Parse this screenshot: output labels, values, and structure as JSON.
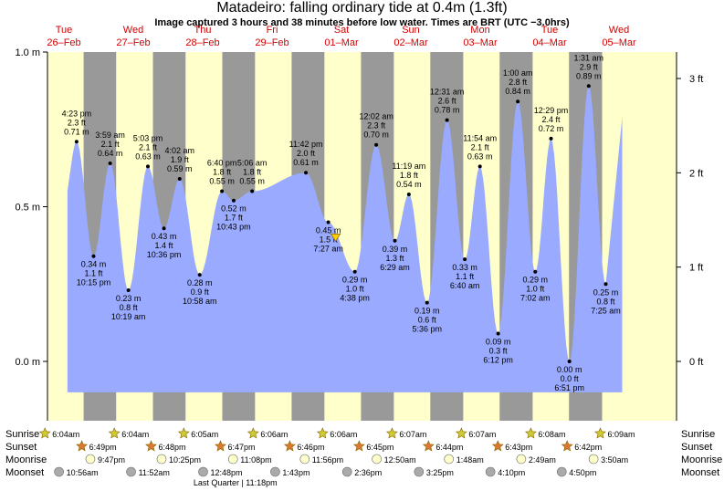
{
  "title": "Matadeiro: falling  ordinary tide at 0.4m (1.3ft)",
  "subtitle": "Image captured 3 hours and 38 minutes before low water. Times are BRT (UTC −3.0hrs)",
  "colors": {
    "night": "#999999",
    "day": "#ffffcc",
    "tide_fill": "#99aaff",
    "date_text": "#d40000",
    "sunrise_icon": "#cccc33",
    "sunset_icon": "#dd7733",
    "moonrise_icon": "#ffffcc",
    "moonset_icon": "#aaaaaa"
  },
  "row_labels": {
    "sunrise": "Sunrise",
    "sunset": "Sunset",
    "moonrise": "Moonrise",
    "moonset": "Moonset"
  },
  "chart_data": {
    "type": "area",
    "title": "Matadeiro: falling  ordinary tide at 0.4m (1.3ft)",
    "left_axis": {
      "unit": "m",
      "ticks": [
        "0.0 m",
        "0.5 m",
        "1.0 m"
      ],
      "values": [
        0,
        0.5,
        1.0
      ]
    },
    "right_axis": {
      "unit": "ft",
      "ticks": [
        "0 ft",
        "1 ft",
        "2 ft",
        "3 ft"
      ],
      "values": [
        0,
        1,
        2,
        3
      ]
    },
    "ylim_m": [
      -0.1,
      1.0
    ],
    "days": [
      {
        "name": "Tue",
        "date": "26–Feb"
      },
      {
        "name": "Wed",
        "date": "27–Feb"
      },
      {
        "name": "Thu",
        "date": "28–Feb"
      },
      {
        "name": "Fri",
        "date": "29–Feb"
      },
      {
        "name": "Sat",
        "date": "01–Mar"
      },
      {
        "name": "Sun",
        "date": "02–Mar"
      },
      {
        "name": "Mon",
        "date": "03–Mar"
      },
      {
        "name": "Tue",
        "date": "04–Mar"
      },
      {
        "name": "Wed",
        "date": "05–Mar"
      }
    ],
    "extrema": [
      {
        "type": "high",
        "time": "4:23 pm",
        "ft": "2.3 ft",
        "m": 0.71,
        "m_label": "0.71 m"
      },
      {
        "type": "low",
        "time": "10:15 pm",
        "ft": "1.1 ft",
        "m": 0.34,
        "m_label": "0.34 m"
      },
      {
        "type": "high",
        "time": "3:59 am",
        "ft": "2.1 ft",
        "m": 0.64,
        "m_label": "0.64 m"
      },
      {
        "type": "low",
        "time": "10:19 am",
        "ft": "0.8 ft",
        "m": 0.23,
        "m_label": "0.23 m"
      },
      {
        "type": "high",
        "time": "5:03 pm",
        "ft": "2.1 ft",
        "m": 0.63,
        "m_label": "0.63 m"
      },
      {
        "type": "low",
        "time": "10:36 pm",
        "ft": "1.4 ft",
        "m": 0.43,
        "m_label": "0.43 m"
      },
      {
        "type": "high",
        "time": "4:02 am",
        "ft": "1.9 ft",
        "m": 0.59,
        "m_label": "0.59 m"
      },
      {
        "type": "low",
        "time": "10:58 am",
        "ft": "0.9 ft",
        "m": 0.28,
        "m_label": "0.28 m"
      },
      {
        "type": "high",
        "time": "6:40 pm",
        "ft": "1.8 ft",
        "m": 0.55,
        "m_label": "0.55 m"
      },
      {
        "type": "low",
        "time": "10:43 pm",
        "ft": "1.7 ft",
        "m": 0.52,
        "m_label": "0.52 m"
      },
      {
        "type": "high",
        "time": "5:06 am",
        "ft": "1.8 ft",
        "m": 0.55,
        "m_label": "0.55 m"
      },
      {
        "type": "high",
        "time": "11:42 pm",
        "ft": "2.0 ft",
        "m": 0.61,
        "m_label": "0.61 m"
      },
      {
        "type": "low",
        "time": "7:27 am",
        "ft": "1.5 ft",
        "m": 0.45,
        "m_label": "0.45 m"
      },
      {
        "type": "low",
        "time": "4:38 pm",
        "ft": "1.0 ft",
        "m": 0.29,
        "m_label": "0.29 m"
      },
      {
        "type": "high",
        "time": "12:02 am",
        "ft": "2.3 ft",
        "m": 0.7,
        "m_label": "0.70 m"
      },
      {
        "type": "low",
        "time": "6:29 am",
        "ft": "1.3 ft",
        "m": 0.39,
        "m_label": "0.39 m"
      },
      {
        "type": "high",
        "time": "11:19 am",
        "ft": "1.8 ft",
        "m": 0.54,
        "m_label": "0.54 m"
      },
      {
        "type": "low",
        "time": "5:36 pm",
        "ft": "0.6 ft",
        "m": 0.19,
        "m_label": "0.19 m"
      },
      {
        "type": "high",
        "time": "12:31 am",
        "ft": "2.6 ft",
        "m": 0.78,
        "m_label": "0.78 m"
      },
      {
        "type": "low",
        "time": "6:40 am",
        "ft": "1.1 ft",
        "m": 0.33,
        "m_label": "0.33 m"
      },
      {
        "type": "high",
        "time": "11:54 am",
        "ft": "2.1 ft",
        "m": 0.63,
        "m_label": "0.63 m"
      },
      {
        "type": "low",
        "time": "6:12 pm",
        "ft": "0.3 ft",
        "m": 0.09,
        "m_label": "0.09 m"
      },
      {
        "type": "high",
        "time": "1:00 am",
        "ft": "2.8 ft",
        "m": 0.84,
        "m_label": "0.84 m"
      },
      {
        "type": "low",
        "time": "7:02 am",
        "ft": "1.0 ft",
        "m": 0.29,
        "m_label": "0.29 m"
      },
      {
        "type": "high",
        "time": "12:29 pm",
        "ft": "2.4 ft",
        "m": 0.72,
        "m_label": "0.72 m"
      },
      {
        "type": "low",
        "time": "6:51 pm",
        "ft": "0.0 ft",
        "m": 0.0,
        "m_label": "0.00 m"
      },
      {
        "type": "high",
        "time": "1:31 am",
        "ft": "2.9 ft",
        "m": 0.89,
        "m_label": "0.89 m"
      },
      {
        "type": "low",
        "time": "7:25 am",
        "ft": "0.8 ft",
        "m": 0.25,
        "m_label": "0.25 m"
      }
    ],
    "current": {
      "state": "falling",
      "m": 0.4,
      "ft": 1.3
    }
  },
  "events": {
    "sunrise": [
      "6:04am",
      "6:04am",
      "6:05am",
      "6:06am",
      "6:06am",
      "6:07am",
      "6:07am",
      "6:08am",
      "6:09am"
    ],
    "sunset": [
      "6:49pm",
      "6:48pm",
      "6:47pm",
      "6:46pm",
      "6:45pm",
      "6:44pm",
      "6:43pm",
      "6:42pm"
    ],
    "moonrise": [
      "9:47pm",
      "10:25pm",
      "11:08pm",
      "11:56pm",
      "12:50am",
      "1:48am",
      "2:49am",
      "3:50am"
    ],
    "moonset": [
      "10:56am",
      "11:52am",
      "12:48pm",
      "1:43pm",
      "2:36pm",
      "3:25pm",
      "4:10pm",
      "4:50pm"
    ]
  },
  "moon_phase": "Last Quarter | 11:18pm"
}
